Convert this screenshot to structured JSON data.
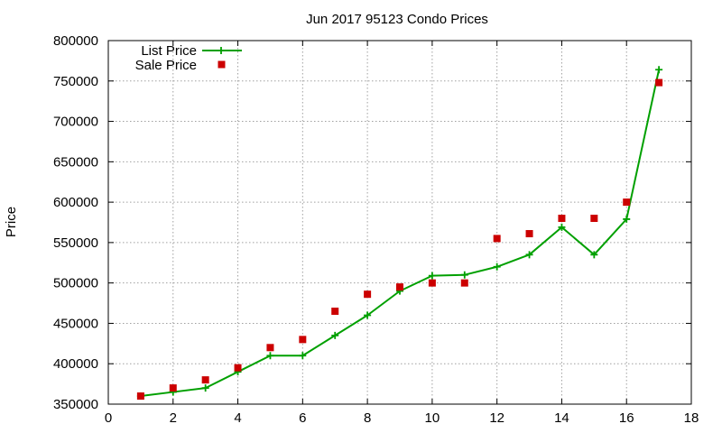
{
  "chart_data": {
    "type": "line",
    "title": "Jun 2017 95123 Condo Prices",
    "ylabel": "Price",
    "xlim": [
      0,
      18
    ],
    "ylim": [
      350000,
      800000
    ],
    "xticks": [
      0,
      2,
      4,
      6,
      8,
      10,
      12,
      14,
      16,
      18
    ],
    "yticks": [
      350000,
      400000,
      450000,
      500000,
      550000,
      600000,
      650000,
      700000,
      750000,
      800000
    ],
    "grid": true,
    "legend_position": "top-left",
    "x": [
      1,
      2,
      3,
      4,
      5,
      6,
      7,
      8,
      9,
      10,
      11,
      12,
      13,
      14,
      15,
      16,
      17
    ],
    "series": [
      {
        "name": "List Price",
        "style": "line-with-plus-markers",
        "color": "#00a000",
        "values": [
          360000,
          365000,
          370000,
          390000,
          410000,
          410000,
          435000,
          460000,
          490000,
          509000,
          510000,
          520000,
          535000,
          569000,
          535000,
          579000,
          764000
        ]
      },
      {
        "name": "Sale Price",
        "style": "square-markers",
        "color": "#cc0000",
        "values": [
          360000,
          370000,
          380000,
          395000,
          420000,
          430000,
          465000,
          486000,
          495000,
          500000,
          500000,
          555000,
          561000,
          580000,
          580000,
          600000,
          748000
        ]
      }
    ]
  }
}
